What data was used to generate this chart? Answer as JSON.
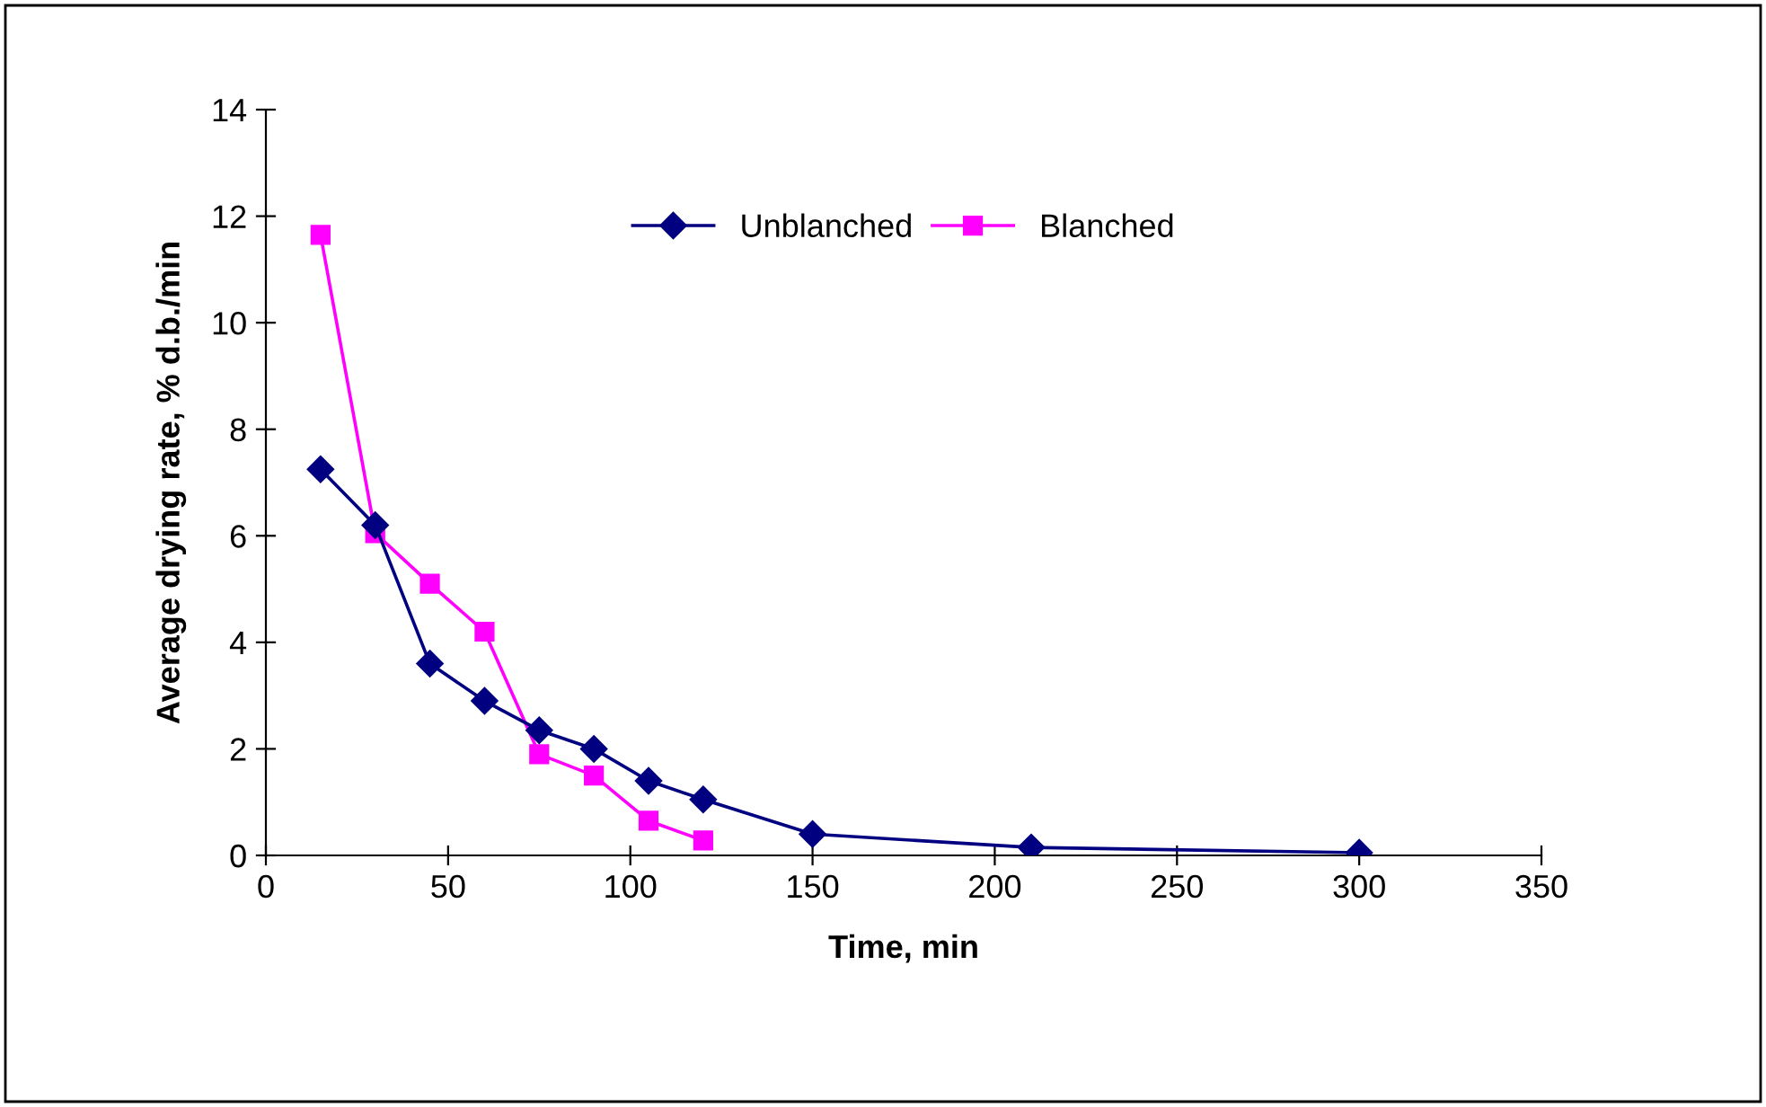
{
  "chart_data": {
    "type": "line",
    "xlabel": "Time, min",
    "ylabel": "Average drying rate, % d.b./min",
    "xlim": [
      0,
      350
    ],
    "xticks": [
      0,
      50,
      100,
      150,
      200,
      250,
      300,
      350
    ],
    "ylim": [
      0,
      14
    ],
    "yticks": [
      0,
      2,
      4,
      6,
      8,
      10,
      12,
      14
    ],
    "grid": false,
    "legend": "top",
    "line_style": "solid",
    "series": [
      {
        "name": "Unblanched",
        "color": "#000080",
        "marker": "diamond",
        "x": [
          15,
          30,
          45,
          60,
          75,
          90,
          105,
          120,
          150,
          210,
          300
        ],
        "values": [
          7.25,
          6.2,
          3.6,
          2.9,
          2.35,
          2.0,
          1.4,
          1.05,
          0.4,
          0.15,
          0.05
        ]
      },
      {
        "name": "Blanched",
        "color": "#ff00ff",
        "marker": "square",
        "x": [
          15,
          30,
          45,
          60,
          75,
          90,
          105,
          120
        ],
        "values": [
          11.65,
          6.05,
          5.1,
          4.2,
          1.9,
          1.5,
          0.65,
          0.28
        ]
      }
    ]
  }
}
